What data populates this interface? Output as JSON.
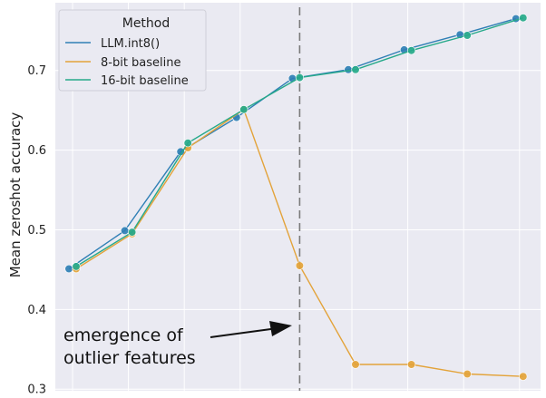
{
  "chart_data": {
    "type": "line",
    "title": "",
    "xlabel": "",
    "ylabel": "Mean zeroshot accuracy",
    "ylim": [
      0.298,
      0.785
    ],
    "yticks": [
      0.3,
      0.4,
      0.5,
      0.6,
      0.7
    ],
    "ytick_labels": [
      "0.3",
      "0.4",
      "0.5",
      "0.6",
      "0.7"
    ],
    "grid": true,
    "legend": {
      "title": "Method",
      "placement": "top-left"
    },
    "series": [
      {
        "name": "LLM.int8()",
        "color": "#2f7fb5",
        "x": [
          0,
          1,
          2,
          3,
          4,
          5,
          6,
          7,
          8
        ],
        "values": [
          0.451,
          0.499,
          0.598,
          0.641,
          0.69,
          0.701,
          0.726,
          0.745,
          0.765
        ]
      },
      {
        "name": "8-bit baseline",
        "color": "#e3a33a",
        "x": [
          0,
          1,
          2,
          3,
          4,
          5,
          6,
          7,
          8
        ],
        "values": [
          0.451,
          0.495,
          0.603,
          0.651,
          0.455,
          0.331,
          0.331,
          0.319,
          0.316
        ]
      },
      {
        "name": "16-bit baseline",
        "color": "#26a98a",
        "x": [
          0,
          1,
          2,
          3,
          4,
          5,
          6,
          7,
          8
        ],
        "values": [
          0.454,
          0.497,
          0.609,
          0.651,
          0.691,
          0.701,
          0.725,
          0.744,
          0.766
        ]
      }
    ],
    "vline": {
      "x": 4,
      "style": "dashed"
    },
    "annotation": {
      "lines": [
        "emergence of",
        "outlier features"
      ]
    }
  }
}
